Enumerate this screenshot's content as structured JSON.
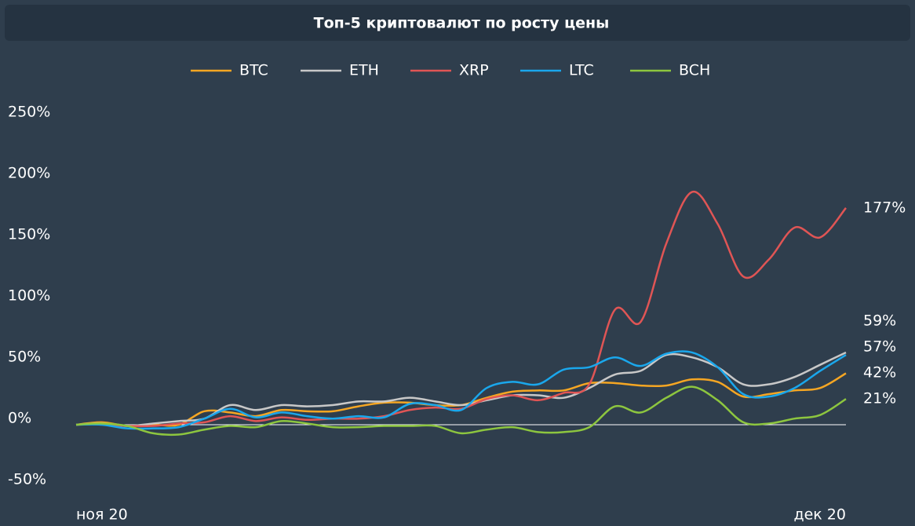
{
  "chart_data": {
    "type": "line",
    "title": "Топ-5 криптовалют по росту цены",
    "categories": [
      "ноя 20",
      null,
      null,
      null,
      null,
      null,
      null,
      null,
      null,
      null,
      null,
      null,
      null,
      null,
      null,
      null,
      null,
      null,
      null,
      null,
      null,
      null,
      null,
      null,
      null,
      null,
      null,
      null,
      null,
      null,
      "дек 20"
    ],
    "series": [
      {
        "name": "BTC",
        "color": "#f5a623",
        "values": [
          0,
          2,
          -1,
          0,
          0,
          11,
          10,
          7,
          12,
          11,
          11,
          15,
          18,
          18,
          16,
          16,
          22,
          27,
          28,
          28,
          34,
          34,
          32,
          32,
          37,
          35,
          23,
          25,
          28,
          30,
          42
        ],
        "value_labels": [
          null,
          null,
          null,
          null,
          null,
          null,
          null,
          null,
          null,
          null,
          null,
          null,
          null,
          null,
          null,
          null,
          null,
          null,
          null,
          null,
          null,
          null,
          null,
          null,
          null,
          null,
          null,
          null,
          null,
          null,
          "42%"
        ]
      },
      {
        "name": "ETH",
        "color": "#c8c8c8",
        "values": [
          0,
          1,
          -1,
          1,
          3,
          5,
          16,
          12,
          16,
          15,
          16,
          19,
          19,
          22,
          19,
          16,
          20,
          24,
          24,
          22,
          30,
          41,
          44,
          57,
          55,
          47,
          33,
          33,
          39,
          49,
          59
        ],
        "value_labels": [
          null,
          null,
          null,
          null,
          null,
          null,
          null,
          null,
          null,
          null,
          null,
          null,
          null,
          null,
          null,
          null,
          null,
          null,
          null,
          null,
          null,
          null,
          null,
          null,
          null,
          null,
          null,
          null,
          null,
          null,
          "59%"
        ]
      },
      {
        "name": "XRP",
        "color": "#e05555",
        "values": [
          0,
          0.6,
          -1,
          -1,
          1,
          2,
          7,
          3,
          6,
          4,
          5,
          5,
          7,
          12,
          14,
          13,
          21,
          24,
          20,
          26,
          33,
          94,
          84,
          148,
          190,
          164,
          121,
          135,
          161,
          153,
          177
        ],
        "value_labels": [
          null,
          null,
          null,
          null,
          null,
          null,
          null,
          null,
          null,
          null,
          null,
          null,
          null,
          null,
          null,
          null,
          null,
          null,
          null,
          null,
          null,
          null,
          null,
          null,
          null,
          null,
          null,
          null,
          null,
          null,
          "177%"
        ]
      },
      {
        "name": "LTC",
        "color": "#1aa7ec",
        "values": [
          0,
          0,
          -3,
          -3,
          -2,
          5,
          13,
          6,
          10,
          7,
          5,
          7,
          6,
          17,
          16,
          12,
          30,
          35,
          33,
          45,
          47,
          55,
          48,
          58,
          59,
          47,
          25,
          23,
          30,
          44,
          57
        ],
        "value_labels": [
          null,
          null,
          null,
          null,
          null,
          null,
          null,
          null,
          null,
          null,
          null,
          null,
          null,
          null,
          null,
          null,
          null,
          null,
          null,
          null,
          null,
          null,
          null,
          null,
          null,
          null,
          null,
          null,
          null,
          null,
          "57%"
        ]
      },
      {
        "name": "BCH",
        "color": "#8dc63f",
        "values": [
          0,
          1,
          -1,
          -7,
          -8,
          -4,
          -1,
          -2,
          3,
          1,
          -2,
          -2,
          -1,
          -1,
          -1,
          -7,
          -4,
          -2,
          -6,
          -6,
          -2,
          15,
          10,
          22,
          31,
          20,
          2,
          1,
          5,
          8,
          21
        ],
        "value_labels": [
          null,
          null,
          null,
          null,
          null,
          null,
          null,
          null,
          null,
          null,
          null,
          null,
          null,
          null,
          null,
          null,
          null,
          null,
          null,
          null,
          null,
          null,
          null,
          null,
          null,
          null,
          null,
          null,
          null,
          null,
          "21%"
        ]
      }
    ],
    "ylim": [
      -50,
      250
    ],
    "yticks": [
      {
        "value": -50,
        "label": "-50%"
      },
      {
        "value": 0,
        "label": "0%"
      },
      {
        "value": 50,
        "label": "50%"
      },
      {
        "value": 100,
        "label": "100%"
      },
      {
        "value": 150,
        "label": "150%"
      },
      {
        "value": 200,
        "label": "200%"
      },
      {
        "value": 250,
        "label": "250%"
      }
    ],
    "grid": false,
    "zero_line": true,
    "legend": "top"
  }
}
